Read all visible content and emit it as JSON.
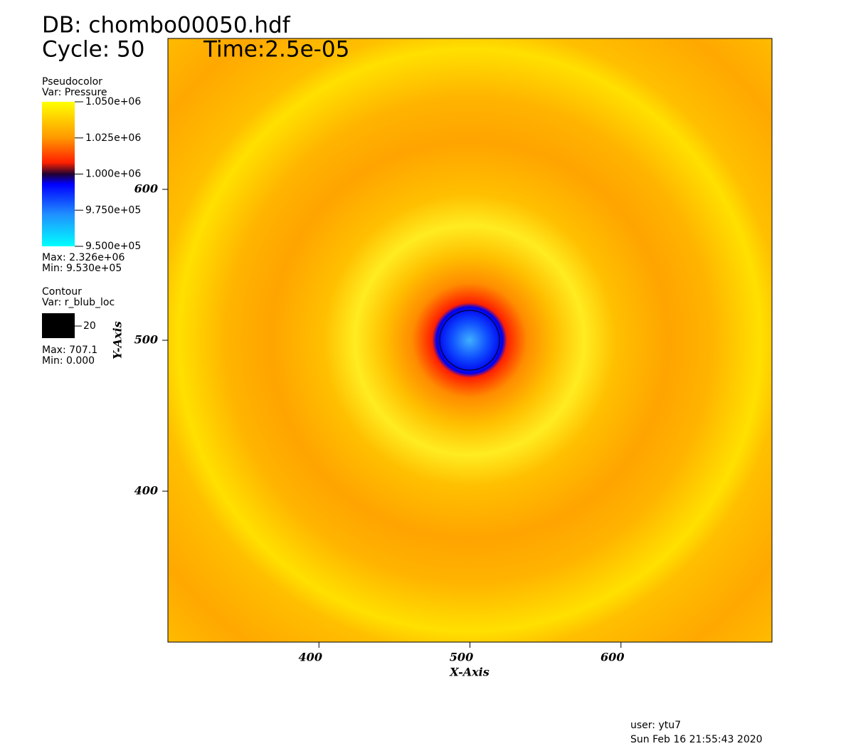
{
  "chart_data": {
    "type": "field",
    "title": "DB: chombo00050.hdf",
    "cycle": "Cycle: 50",
    "time": "Time:2.5e-05",
    "xlabel": "X-Axis",
    "ylabel": "Y-Axis",
    "xlim": [
      300,
      700
    ],
    "ylim": [
      300,
      700
    ],
    "xticks": [
      400,
      500,
      600
    ],
    "yticks": [
      400,
      500,
      600
    ],
    "pseudocolor": {
      "title": "Pseudocolor",
      "var": "Var: Pressure",
      "labels": [
        "1.050e+06",
        "1.025e+06",
        "1.000e+06",
        "9.750e+05",
        "9.500e+05"
      ],
      "max": "Max: 2.326e+06",
      "min": "Min: 9.530e+05"
    },
    "contour": {
      "title": "Contour",
      "var": "Var: r_blub_loc",
      "label": "20",
      "max": "Max: 707.1",
      "min": "Min: 0.000"
    },
    "user": "user: ytu7",
    "date": "Sun Feb 16 21:55:43 2020"
  }
}
